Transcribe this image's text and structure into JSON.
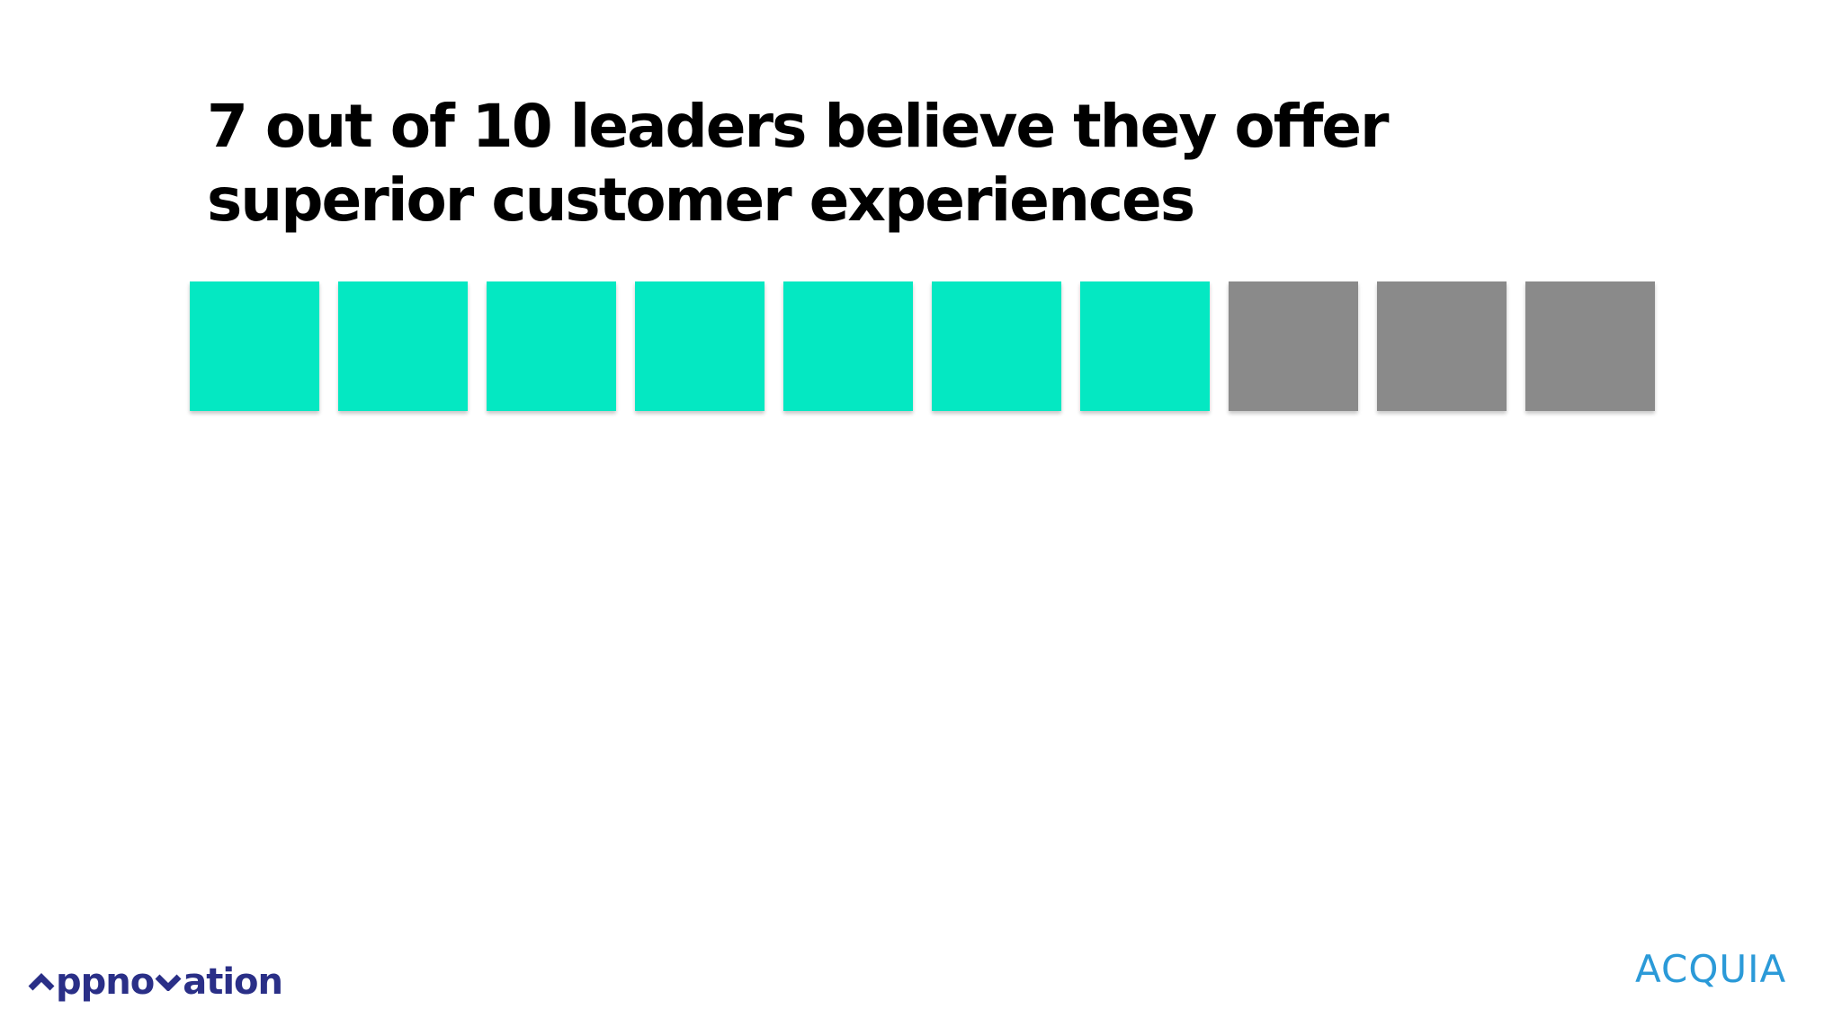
{
  "slide": {
    "title_line1": "7 out of 10 leaders believe they offer",
    "title_line2": "superior customer experiences"
  },
  "chart_data": {
    "type": "pictograph",
    "total_units": 10,
    "highlighted_units": 7,
    "colors": {
      "highlighted": "#04e8c2",
      "other": "#8a8a8a"
    }
  },
  "logos": {
    "left": {
      "text_parts": [
        "ppno",
        "ation"
      ],
      "color": "#2a2f87",
      "icon": "caret-chevrons"
    },
    "right": {
      "text": "ACQUIA",
      "color": "#2b9ad8"
    }
  }
}
